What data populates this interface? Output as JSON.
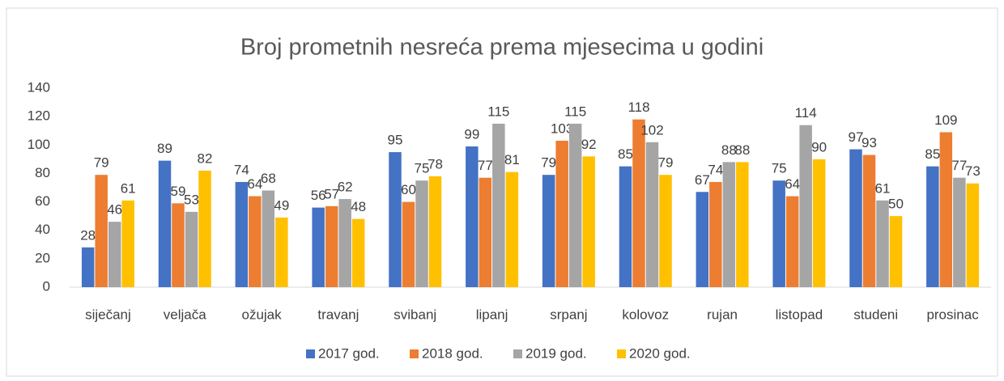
{
  "chart_data": {
    "type": "bar",
    "title": "Broj prometnih nesreća prema mjesecima u godini",
    "categories": [
      "siječanj",
      "veljača",
      "ožujak",
      "travanj",
      "svibanj",
      "lipanj",
      "srpanj",
      "kolovoz",
      "rujan",
      "listopad",
      "studeni",
      "prosinac"
    ],
    "series": [
      {
        "name": "2017 god.",
        "color": "#4472c4",
        "values": [
          28,
          89,
          74,
          56,
          95,
          99,
          79,
          85,
          67,
          75,
          97,
          85
        ]
      },
      {
        "name": "2018 god.",
        "color": "#ed7d31",
        "values": [
          79,
          59,
          64,
          57,
          60,
          77,
          103,
          118,
          74,
          64,
          93,
          109
        ]
      },
      {
        "name": "2019 god.",
        "color": "#a5a5a5",
        "values": [
          46,
          53,
          68,
          62,
          75,
          115,
          115,
          102,
          88,
          114,
          61,
          77
        ]
      },
      {
        "name": "2020 god.",
        "color": "#ffc000",
        "values": [
          61,
          82,
          49,
          48,
          78,
          81,
          92,
          79,
          88,
          90,
          50,
          73
        ]
      }
    ],
    "ylim": [
      0,
      140
    ],
    "yticks": [
      0,
      20,
      40,
      60,
      80,
      100,
      120,
      140
    ],
    "grid": false,
    "legend": "bottom"
  }
}
